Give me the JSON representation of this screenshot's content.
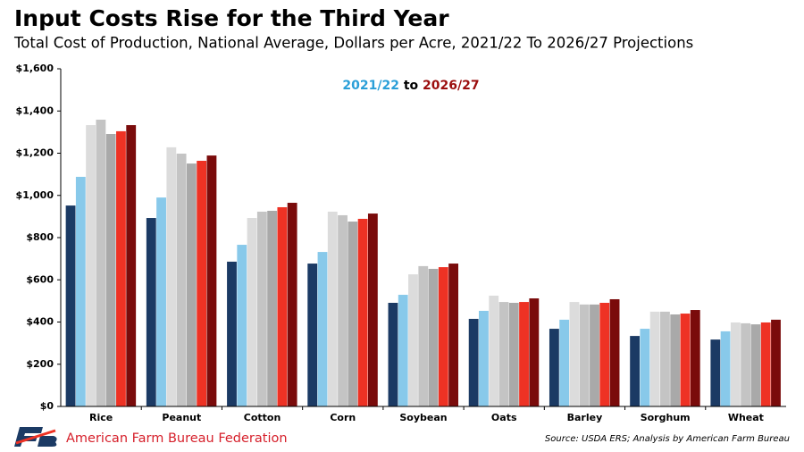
{
  "chart_data": {
    "type": "bar",
    "title": "Input Costs Rise for the Third Year",
    "subtitle": "Total Cost of Production, National Average, Dollars per Acre, 2021/22 To 2026/27 Projections",
    "annotation": [
      {
        "text": "2021/22",
        "color": "#2a9fd8"
      },
      {
        "text": "to",
        "color": "#000000"
      },
      {
        "text": "2026/27",
        "color": "#9b0d0d"
      }
    ],
    "categories": [
      "Rice",
      "Peanut",
      "Cotton",
      "Corn",
      "Soybean",
      "Oats",
      "Barley",
      "Sorghum",
      "Wheat"
    ],
    "series": [
      {
        "color": "#1b3a64",
        "values": [
          952,
          893,
          686,
          677,
          491,
          415,
          368,
          334,
          317
        ]
      },
      {
        "color": "#88c9ea",
        "values": [
          1088,
          990,
          766,
          732,
          529,
          453,
          411,
          368,
          356
        ]
      },
      {
        "color": "#dcdcdc",
        "values": [
          1333,
          1228,
          893,
          923,
          626,
          525,
          495,
          449,
          398
        ]
      },
      {
        "color": "#c4c4c4",
        "values": [
          1359,
          1198,
          923,
          906,
          665,
          495,
          483,
          449,
          394
        ]
      },
      {
        "color": "#a9a9a9",
        "values": [
          1291,
          1151,
          927,
          876,
          652,
          491,
          483,
          436,
          389
        ]
      },
      {
        "color": "#ee3224",
        "values": [
          1304,
          1164,
          944,
          889,
          660,
          495,
          491,
          440,
          398
        ]
      },
      {
        "color": "#7a0b0b",
        "values": [
          1333,
          1189,
          965,
          914,
          677,
          512,
          508,
          457,
          411
        ]
      }
    ],
    "ylim": [
      0,
      1600
    ],
    "yticks": [
      {
        "value": 0,
        "label": "$0"
      },
      {
        "value": 200,
        "label": "$200"
      },
      {
        "value": 400,
        "label": "$400"
      },
      {
        "value": 600,
        "label": "$600"
      },
      {
        "value": 800,
        "label": "$800"
      },
      {
        "value": 1000,
        "label": "$1,000"
      },
      {
        "value": 1200,
        "label": "$1,200"
      },
      {
        "value": 1400,
        "label": "$1,400"
      },
      {
        "value": 1600,
        "label": "$1,600"
      }
    ],
    "grid": false,
    "organization": "American Farm Bureau Federation",
    "source": "Source: USDA ERS; Analysis by American Farm Bureau"
  }
}
